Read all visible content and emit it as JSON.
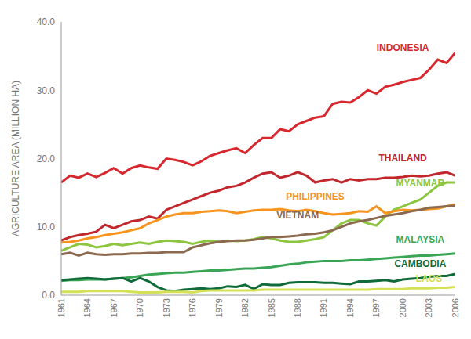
{
  "chart_data": {
    "type": "line",
    "y_label": "AGRICULTURE AREA (MILLION HA)",
    "x": [
      1961,
      1962,
      1963,
      1964,
      1965,
      1966,
      1967,
      1968,
      1969,
      1970,
      1971,
      1972,
      1973,
      1974,
      1975,
      1976,
      1977,
      1978,
      1979,
      1980,
      1981,
      1982,
      1983,
      1984,
      1985,
      1986,
      1987,
      1988,
      1989,
      1990,
      1991,
      1992,
      1993,
      1994,
      1995,
      1996,
      1997,
      1998,
      1999,
      2000,
      2001,
      2002,
      2003,
      2004,
      2005,
      2006
    ],
    "xlim": [
      1961,
      2006
    ],
    "xticks": [
      1961,
      1964,
      1967,
      1970,
      1973,
      1976,
      1979,
      1982,
      1985,
      1988,
      1991,
      1994,
      1997,
      2000,
      2003,
      2006
    ],
    "ylim": [
      0,
      40
    ],
    "yticks": [
      {
        "value": 0,
        "label": "0.0"
      },
      {
        "value": 10,
        "label": "10.0"
      },
      {
        "value": 20,
        "label": "20.0"
      },
      {
        "value": 30,
        "label": "30.0"
      },
      {
        "value": 40,
        "label": "40.0"
      }
    ],
    "grid": false,
    "series": [
      {
        "name": "INDONESIA",
        "color": "#d7282f",
        "values": [
          16.5,
          17.5,
          17.2,
          17.8,
          17.3,
          17.9,
          18.6,
          17.8,
          18.6,
          19.0,
          18.7,
          18.5,
          20.0,
          19.8,
          19.5,
          19.0,
          19.6,
          20.4,
          20.8,
          21.2,
          21.5,
          20.8,
          22.0,
          23.0,
          23.0,
          24.3,
          24.0,
          25.0,
          25.5,
          26.0,
          26.2,
          28.0,
          28.3,
          28.2,
          29.0,
          30.0,
          29.5,
          30.5,
          30.8,
          31.2,
          31.5,
          31.8,
          33.0,
          34.5,
          34.0,
          35.5
        ]
      },
      {
        "name": "THAILAND",
        "color": "#c1272d",
        "values": [
          8.0,
          8.5,
          8.8,
          9.0,
          9.3,
          10.3,
          9.8,
          10.3,
          10.8,
          11.0,
          11.5,
          11.2,
          12.5,
          13.0,
          13.5,
          14.0,
          14.5,
          15.0,
          15.3,
          15.8,
          16.0,
          16.5,
          17.2,
          17.8,
          18.0,
          17.2,
          17.5,
          18.0,
          17.5,
          16.5,
          16.8,
          17.0,
          16.5,
          17.0,
          16.8,
          17.0,
          17.0,
          17.2,
          17.2,
          17.3,
          17.5,
          17.4,
          17.5,
          17.8,
          18.0,
          17.5
        ]
      },
      {
        "name": "MYANMAR",
        "color": "#8cc63f",
        "values": [
          6.5,
          7.0,
          7.5,
          7.4,
          7.0,
          7.2,
          7.5,
          7.3,
          7.5,
          7.7,
          7.5,
          7.8,
          8.0,
          7.9,
          7.8,
          7.5,
          7.8,
          8.0,
          7.8,
          8.0,
          7.9,
          8.0,
          8.2,
          8.5,
          8.3,
          8.0,
          7.8,
          7.8,
          8.0,
          8.2,
          8.5,
          9.5,
          10.5,
          11.0,
          11.0,
          10.5,
          10.2,
          11.5,
          12.5,
          13.0,
          13.5,
          14.0,
          15.0,
          16.0,
          16.5,
          16.5
        ]
      },
      {
        "name": "PHILIPPINES",
        "color": "#f7941d",
        "values": [
          7.7,
          7.8,
          8.0,
          8.3,
          8.5,
          8.8,
          9.0,
          9.2,
          9.5,
          9.8,
          10.5,
          11.0,
          11.5,
          11.8,
          12.0,
          12.0,
          12.2,
          12.3,
          12.4,
          12.3,
          12.0,
          12.2,
          12.4,
          12.5,
          12.5,
          12.6,
          12.4,
          12.3,
          12.5,
          12.3,
          12.0,
          11.8,
          11.9,
          12.0,
          12.3,
          12.2,
          13.0,
          12.0,
          12.3,
          12.5,
          12.4,
          12.5,
          12.6,
          12.7,
          13.0,
          13.3
        ]
      },
      {
        "name": "VIETNAM",
        "color": "#8b6a4f",
        "values": [
          6.0,
          6.2,
          5.8,
          6.2,
          6.0,
          5.9,
          6.0,
          6.0,
          6.1,
          6.1,
          6.2,
          6.2,
          6.3,
          6.3,
          6.3,
          7.0,
          7.3,
          7.6,
          7.8,
          7.9,
          8.0,
          8.0,
          8.1,
          8.3,
          8.5,
          8.5,
          8.6,
          8.7,
          8.9,
          9.0,
          9.2,
          9.5,
          10.0,
          10.5,
          10.8,
          11.0,
          11.3,
          11.6,
          11.8,
          12.0,
          12.3,
          12.5,
          12.8,
          12.9,
          13.0,
          13.1
        ]
      },
      {
        "name": "MALAYSIA",
        "color": "#3aa655",
        "values": [
          2.1,
          2.2,
          2.2,
          2.3,
          2.3,
          2.3,
          2.4,
          2.5,
          2.6,
          2.8,
          3.0,
          3.1,
          3.2,
          3.3,
          3.3,
          3.4,
          3.5,
          3.6,
          3.6,
          3.7,
          3.8,
          3.9,
          3.9,
          4.0,
          4.1,
          4.3,
          4.5,
          4.6,
          4.8,
          4.9,
          5.0,
          5.0,
          5.0,
          5.1,
          5.1,
          5.2,
          5.3,
          5.4,
          5.5,
          5.6,
          5.7,
          5.8,
          5.8,
          5.9,
          6.0,
          6.1
        ]
      },
      {
        "name": "CAMBODIA",
        "color": "#0f6b3a",
        "values": [
          2.2,
          2.3,
          2.4,
          2.5,
          2.4,
          2.3,
          2.4,
          2.5,
          2.0,
          2.5,
          2.0,
          1.2,
          0.7,
          0.6,
          0.8,
          0.9,
          1.0,
          0.9,
          1.0,
          1.3,
          1.2,
          1.5,
          0.9,
          1.6,
          1.5,
          1.5,
          1.8,
          1.9,
          1.9,
          1.9,
          1.8,
          1.8,
          1.7,
          1.6,
          2.0,
          2.0,
          2.1,
          2.2,
          2.0,
          2.3,
          2.4,
          2.5,
          2.7,
          2.8,
          2.8,
          3.1
        ]
      },
      {
        "name": "LAOS",
        "color": "#d4e157",
        "values": [
          0.5,
          0.5,
          0.5,
          0.6,
          0.6,
          0.6,
          0.6,
          0.6,
          0.5,
          0.4,
          0.4,
          0.4,
          0.5,
          0.5,
          0.5,
          0.4,
          0.6,
          0.7,
          0.7,
          0.7,
          0.7,
          0.7,
          0.7,
          0.8,
          0.8,
          0.8,
          0.8,
          0.8,
          0.8,
          0.8,
          0.8,
          0.8,
          0.8,
          0.8,
          0.8,
          0.8,
          0.9,
          0.9,
          0.9,
          0.9,
          1.0,
          1.0,
          1.0,
          1.1,
          1.1,
          1.2
        ]
      }
    ]
  }
}
